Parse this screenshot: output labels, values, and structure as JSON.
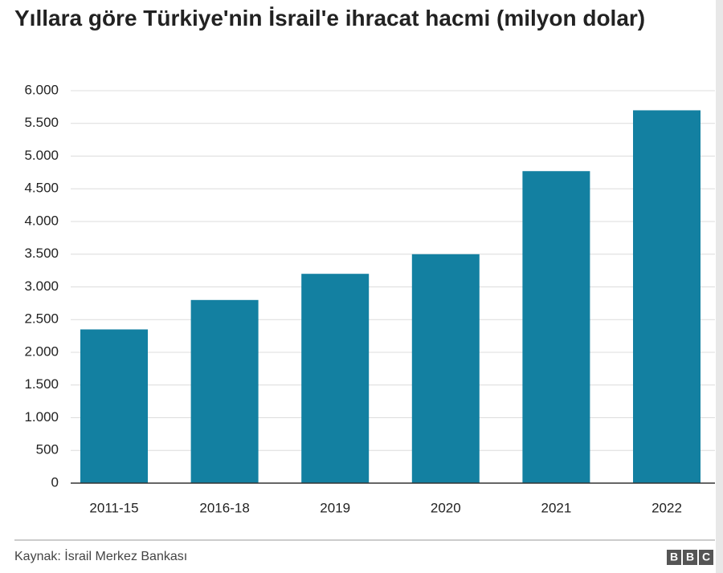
{
  "chart_data": {
    "type": "bar",
    "title": "Yıllara göre Türkiye'nin İsrail'e ihracat hacmi (milyon dolar)",
    "categories": [
      "2011-15",
      "2016-18",
      "2019",
      "2020",
      "2021",
      "2022"
    ],
    "values": [
      2350,
      2800,
      3200,
      3500,
      4770,
      5700
    ],
    "color": "#1380a1",
    "ylim": [
      0,
      6000
    ],
    "yticks": [
      0,
      500,
      {
        "value": 1000,
        "label": "1.000"
      },
      {
        "value": 1500,
        "label": "1.500"
      },
      {
        "value": 2000,
        "label": "2.000"
      },
      {
        "value": 2500,
        "label": "2.500"
      },
      {
        "value": 3000,
        "label": "3.000"
      },
      {
        "value": 3500,
        "label": "3.500"
      },
      {
        "value": 4000,
        "label": "4.000"
      },
      {
        "value": 4500,
        "label": "4.500"
      },
      {
        "value": 5000,
        "label": "5.000"
      },
      {
        "value": 5500,
        "label": "5.500"
      },
      {
        "value": 6000,
        "label": "6.000"
      }
    ],
    "grid": true,
    "source": "Kaynak: İsrail Merkez Bankası",
    "logo": [
      "B",
      "B",
      "C"
    ]
  }
}
